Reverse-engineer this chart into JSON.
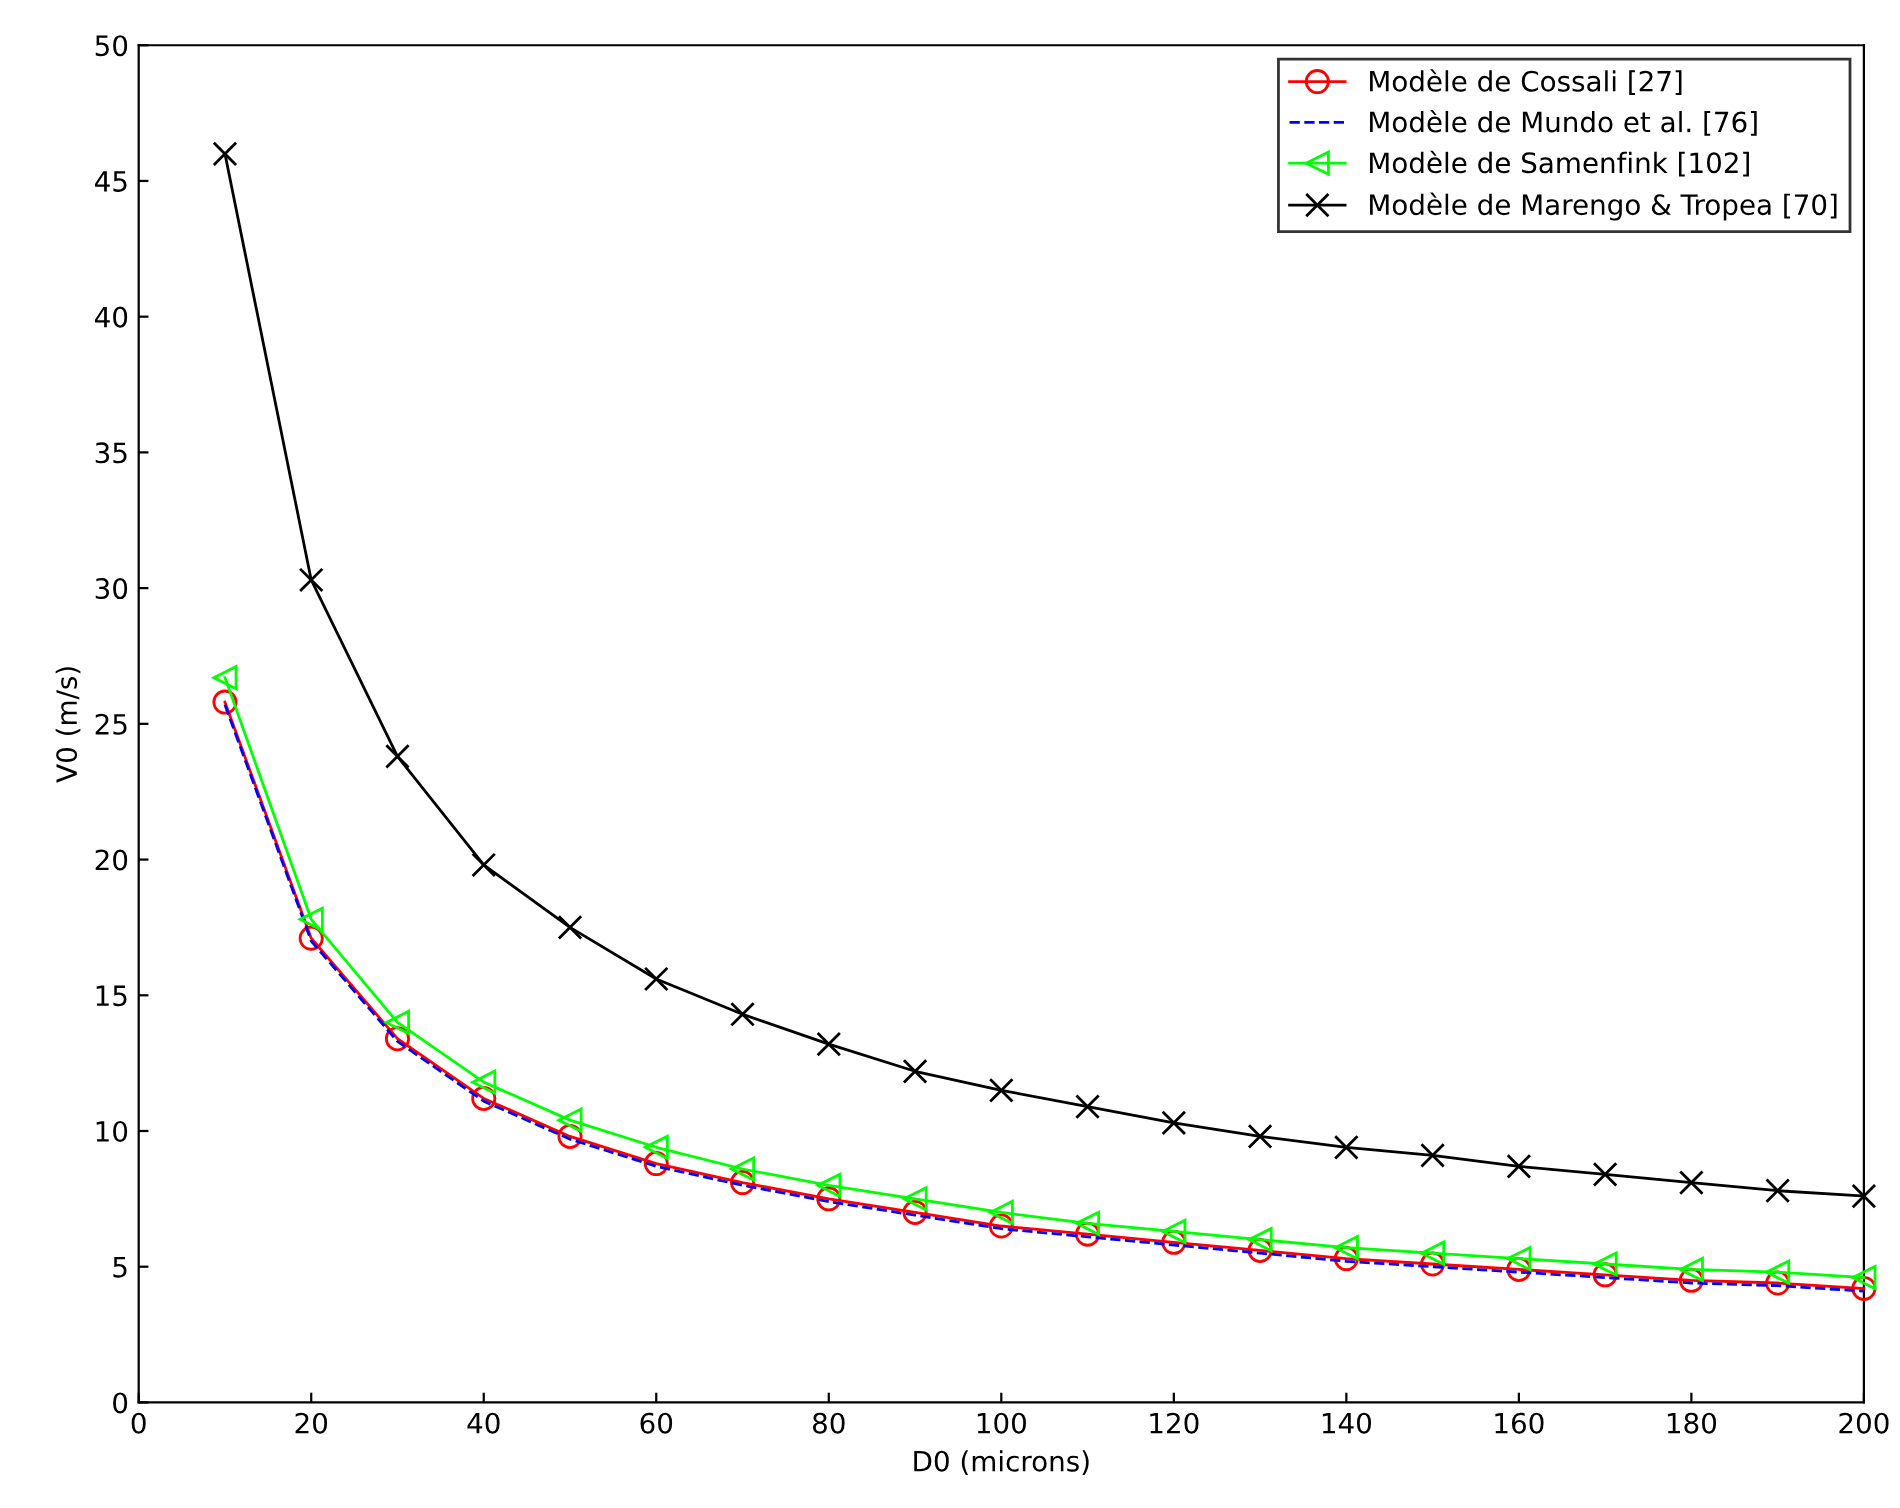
{
  "chart_data": {
    "type": "line",
    "xlabel": "D0 (microns)",
    "ylabel": "V0 (m/s)",
    "x": [
      10,
      20,
      30,
      40,
      50,
      60,
      70,
      80,
      90,
      100,
      110,
      120,
      130,
      140,
      150,
      160,
      170,
      180,
      190,
      200
    ],
    "xlim": [
      0,
      200
    ],
    "xticks": [
      0,
      20,
      40,
      60,
      80,
      100,
      120,
      140,
      160,
      180,
      200
    ],
    "ylim": [
      0,
      50
    ],
    "yticks": [
      0,
      5,
      10,
      15,
      20,
      25,
      30,
      35,
      40,
      45,
      50
    ],
    "grid": false,
    "legend": "top right",
    "series": [
      {
        "name": "Modèle de Cossali [27]",
        "color": "#ff0000",
        "marker": "circle",
        "line_style": "solid",
        "values": [
          25.8,
          17.1,
          13.4,
          11.2,
          9.8,
          8.8,
          8.1,
          7.5,
          7.0,
          6.5,
          6.2,
          5.9,
          5.6,
          5.3,
          5.1,
          4.9,
          4.7,
          4.5,
          4.4,
          4.2
        ]
      },
      {
        "name": "Modèle de Mundo et al. [76]",
        "color": "#0000ff",
        "marker": "none",
        "line_style": "dashed",
        "values": [
          25.7,
          17.0,
          13.3,
          11.1,
          9.7,
          8.7,
          8.0,
          7.4,
          6.9,
          6.4,
          6.1,
          5.8,
          5.5,
          5.2,
          5.0,
          4.8,
          4.6,
          4.4,
          4.3,
          4.1
        ]
      },
      {
        "name": "Modèle de Samenfink [102]",
        "color": "#00ff00",
        "marker": "triangle",
        "line_style": "solid",
        "values": [
          26.7,
          17.8,
          14.0,
          11.8,
          10.4,
          9.4,
          8.6,
          8.0,
          7.5,
          7.0,
          6.6,
          6.3,
          6.0,
          5.7,
          5.5,
          5.3,
          5.1,
          4.9,
          4.8,
          4.6
        ]
      },
      {
        "name": "Modèle de Marengo & Tropea [70]",
        "color": "#000000",
        "marker": "cross",
        "line_style": "solid",
        "values": [
          46.0,
          30.3,
          23.8,
          19.8,
          17.5,
          15.6,
          14.3,
          13.2,
          12.2,
          11.5,
          10.9,
          10.3,
          9.8,
          9.4,
          9.1,
          8.7,
          8.4,
          8.1,
          7.8,
          7.6
        ]
      }
    ]
  }
}
